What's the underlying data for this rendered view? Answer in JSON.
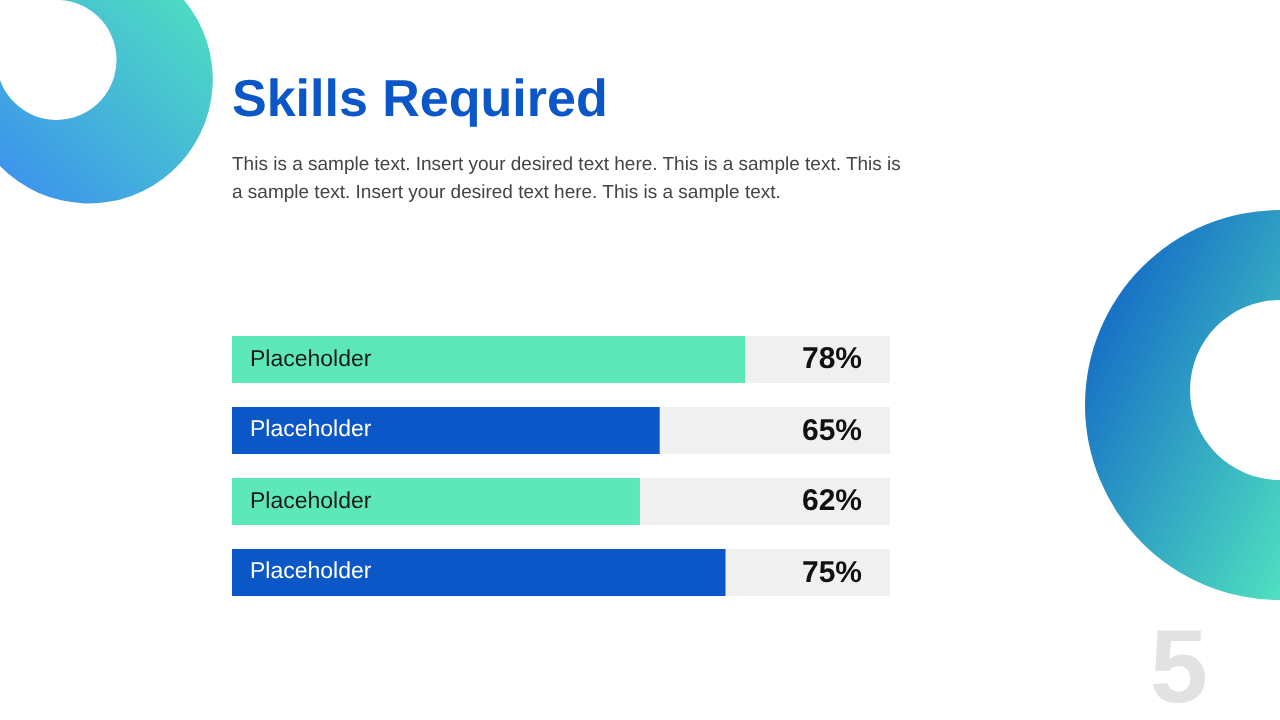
{
  "chart_data": {
    "type": "bar",
    "orientation": "horizontal",
    "title": "Skills Required",
    "subtitle": "This is a sample text. Insert your desired text here. This is a sample text. This is a sample text. Insert your desired text here. This is a sample text.",
    "categories": [
      "Placeholder",
      "Placeholder",
      "Placeholder",
      "Placeholder"
    ],
    "values": [
      78,
      65,
      62,
      75
    ],
    "colors": [
      "#5ce8b8",
      "#0b57c7",
      "#5ce8b8",
      "#0b57c7"
    ],
    "value_labels": [
      "78%",
      "65%",
      "62%",
      "75%"
    ],
    "xlim": [
      0,
      100
    ],
    "tick_labels": false,
    "annotations": [
      "5"
    ]
  }
}
